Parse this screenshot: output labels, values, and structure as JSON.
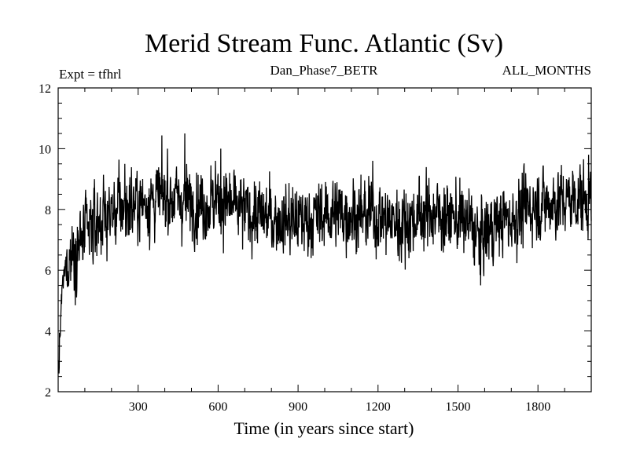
{
  "chart_data": {
    "type": "line",
    "title": "Merid Stream Func. Atlantic (Sv)",
    "header_left": "Expt = tfhrl",
    "header_center": "Dan_Phase7_BETR",
    "header_right": "ALL_MONTHS",
    "xlabel": "Time (in years since start)",
    "ylabel": "",
    "xlim": [
      0,
      2000
    ],
    "ylim": [
      2,
      12
    ],
    "xticks": [
      300,
      600,
      900,
      1200,
      1500,
      1800
    ],
    "xtick_labels": [
      "300",
      "600",
      "900",
      "1200",
      "1500",
      "1800"
    ],
    "yticks": [
      2,
      4,
      6,
      8,
      10,
      12
    ],
    "ytick_labels": [
      "2",
      "4",
      "6",
      "8",
      "10",
      "12"
    ],
    "series": [
      {
        "name": "Merid Stream Func. Atlantic",
        "color": "#000000",
        "trend_x": [
          0,
          5,
          10,
          20,
          40,
          60,
          100,
          150,
          200,
          250,
          300,
          350,
          400,
          450,
          500,
          550,
          600,
          650,
          700,
          750,
          800,
          850,
          900,
          950,
          1000,
          1050,
          1100,
          1150,
          1200,
          1250,
          1300,
          1350,
          1400,
          1450,
          1500,
          1550,
          1580,
          1600,
          1650,
          1700,
          1750,
          1800,
          1850,
          1900,
          1950,
          2000
        ],
        "trend_y": [
          2.8,
          3.3,
          4.6,
          5.8,
          6.4,
          6.7,
          7.1,
          7.6,
          7.9,
          8.1,
          8.2,
          8.3,
          8.4,
          8.3,
          8.3,
          8.2,
          8.3,
          8.1,
          7.9,
          7.8,
          7.7,
          7.7,
          7.6,
          7.7,
          7.8,
          7.9,
          7.9,
          7.8,
          7.8,
          7.6,
          7.6,
          7.8,
          7.9,
          7.8,
          7.7,
          7.5,
          7.0,
          7.2,
          7.6,
          7.7,
          8.0,
          8.2,
          8.2,
          8.3,
          8.4,
          8.3
        ],
        "noise_sd": 0.55,
        "extremes": [
          [
            475,
            10.5
          ],
          [
            410,
            10.0
          ],
          [
            610,
            10.0
          ],
          [
            590,
            9.6
          ],
          [
            1585,
            5.5
          ],
          [
            1990,
            9.8
          ],
          [
            1180,
            9.6
          ],
          [
            250,
            9.5
          ],
          [
            1280,
            6.3
          ],
          [
            3,
            2.6
          ]
        ]
      }
    ]
  }
}
